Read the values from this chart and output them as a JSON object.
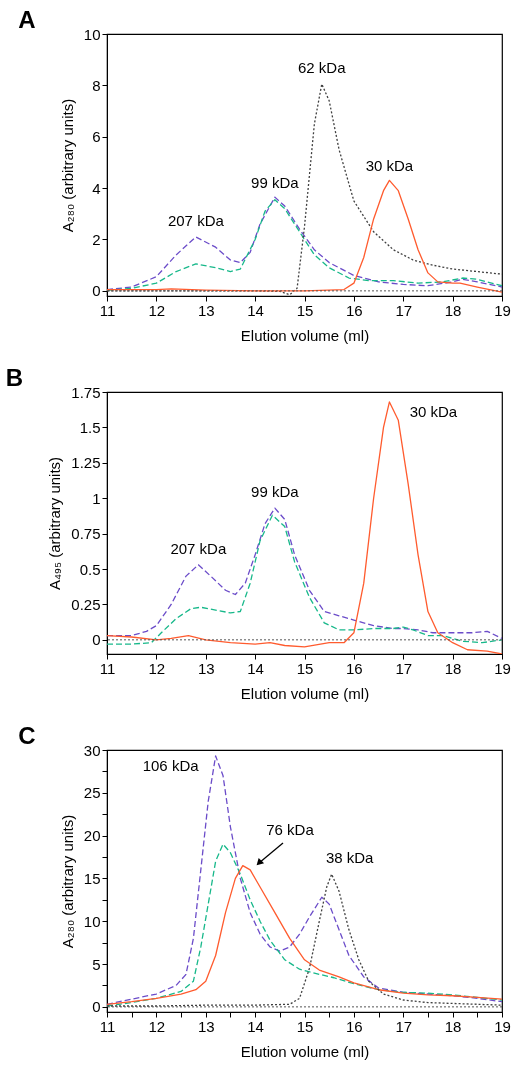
{
  "chart_data": [
    {
      "type": "line",
      "title": "A",
      "xlabel": "Elution volume (ml)",
      "ylabel": "A₂₈₀ (arbitrary units)",
      "xlim": [
        11,
        19
      ],
      "ylim": [
        -0.2,
        10
      ],
      "xticks": [
        11,
        12,
        13,
        14,
        15,
        16,
        17,
        18,
        19
      ],
      "yticks": [
        0,
        2,
        4,
        6,
        8,
        10
      ],
      "grid": false,
      "series": [
        {
          "color": "#6b4cc9",
          "line_style": "dashed",
          "x": [
            11,
            11.5,
            12,
            12.4,
            12.8,
            13.2,
            13.5,
            13.7,
            13.9,
            14.1,
            14.4,
            14.6,
            14.9,
            15.2,
            15.5,
            16,
            16.5,
            17,
            17.5,
            18,
            18.2,
            18.5,
            19
          ],
          "values": [
            0.05,
            0.15,
            0.55,
            1.4,
            2.1,
            1.7,
            1.2,
            1.1,
            1.5,
            2.6,
            3.65,
            3.3,
            2.4,
            1.6,
            1.1,
            0.6,
            0.35,
            0.25,
            0.2,
            0.35,
            0.45,
            0.35,
            0.15
          ]
        },
        {
          "color": "#17b88a",
          "line_style": "dashed",
          "x": [
            11,
            11.5,
            12,
            12.4,
            12.8,
            13.2,
            13.5,
            13.7,
            14,
            14.2,
            14.4,
            14.6,
            14.9,
            15.2,
            15.5,
            15.9,
            16.3,
            16.8,
            17.3,
            17.8,
            18.2,
            18.5,
            19
          ],
          "values": [
            0.02,
            0.1,
            0.3,
            0.75,
            1.05,
            0.9,
            0.75,
            0.85,
            2.0,
            3.1,
            3.55,
            3.2,
            2.3,
            1.4,
            0.9,
            0.5,
            0.4,
            0.4,
            0.3,
            0.35,
            0.5,
            0.45,
            0.2
          ]
        },
        {
          "color": "#404040",
          "line_style": "dotted",
          "x": [
            11,
            12,
            13,
            14,
            14.5,
            14.7,
            14.85,
            15,
            15.2,
            15.35,
            15.5,
            15.7,
            16,
            16.4,
            16.8,
            17.2,
            17.6,
            18,
            18.5,
            19
          ],
          "values": [
            0,
            0,
            0,
            0,
            -0.02,
            -0.15,
            0.1,
            2.5,
            6.5,
            8.05,
            7.4,
            5.5,
            3.5,
            2.3,
            1.6,
            1.2,
            1.0,
            0.85,
            0.75,
            0.65
          ]
        },
        {
          "color": "#ff5b2e",
          "line_style": "solid",
          "x": [
            11,
            12,
            12.3,
            13,
            14,
            15,
            15.8,
            16,
            16.2,
            16.4,
            16.6,
            16.72,
            16.9,
            17.1,
            17.3,
            17.5,
            17.7,
            18,
            18.15,
            18.5,
            19
          ],
          "values": [
            0.05,
            0.05,
            0.08,
            0.03,
            0,
            0,
            0.05,
            0.3,
            1.3,
            2.8,
            3.9,
            4.3,
            3.9,
            2.8,
            1.6,
            0.7,
            0.35,
            0.3,
            0.3,
            0.15,
            -0.05
          ]
        }
      ],
      "ref_lines": [
        {
          "axis": "y",
          "value": 0,
          "color": "#555555",
          "line_style": "dotted"
        }
      ],
      "annotations": [
        {
          "text": "207 kDa",
          "x": 12.8,
          "y": 2.1
        },
        {
          "text": "99 kDa",
          "x": 14.4,
          "y": 3.65
        },
        {
          "text": "62 kDa",
          "x": 15.35,
          "y": 8.05
        },
        {
          "text": "30 kDa",
          "x": 16.72,
          "y": 4.3
        }
      ]
    },
    {
      "type": "line",
      "title": "B",
      "xlabel": "Elution volume (ml)",
      "ylabel": "A₄₉₅ (arbitrary units)",
      "xlim": [
        11,
        19
      ],
      "ylim": [
        -0.1,
        1.75
      ],
      "xticks": [
        11,
        12,
        13,
        14,
        15,
        16,
        17,
        18,
        19
      ],
      "yticks": [
        0,
        0.25,
        0.5,
        0.75,
        1,
        1.25,
        1.5,
        1.75
      ],
      "grid": false,
      "series": [
        {
          "color": "#6b4cc9",
          "line_style": "dashed",
          "x": [
            11,
            11.5,
            11.8,
            12,
            12.3,
            12.6,
            12.85,
            13.1,
            13.4,
            13.6,
            13.8,
            14,
            14.2,
            14.4,
            14.6,
            14.8,
            15.1,
            15.4,
            15.7,
            16,
            16.4,
            16.8,
            17,
            17.3,
            17.6,
            18,
            18.4,
            18.7,
            19
          ],
          "values": [
            0.03,
            0.03,
            0.06,
            0.1,
            0.25,
            0.45,
            0.53,
            0.45,
            0.35,
            0.32,
            0.4,
            0.6,
            0.82,
            0.93,
            0.85,
            0.6,
            0.35,
            0.2,
            0.17,
            0.14,
            0.1,
            0.08,
            0.08,
            0.07,
            0.05,
            0.05,
            0.05,
            0.06,
            0.01
          ]
        },
        {
          "color": "#17b88a",
          "line_style": "dashed",
          "x": [
            11,
            11.5,
            11.9,
            12.1,
            12.4,
            12.7,
            12.9,
            13.2,
            13.5,
            13.7,
            13.9,
            14.1,
            14.35,
            14.6,
            14.8,
            15.1,
            15.4,
            15.7,
            16,
            16.4,
            16.8,
            17,
            17.2,
            17.5,
            17.8,
            18.2,
            18.6,
            19
          ],
          "values": [
            -0.03,
            -0.03,
            -0.02,
            0.05,
            0.15,
            0.22,
            0.23,
            0.21,
            0.19,
            0.2,
            0.4,
            0.7,
            0.88,
            0.8,
            0.55,
            0.3,
            0.12,
            0.07,
            0.07,
            0.08,
            0.08,
            0.09,
            0.07,
            0.03,
            0.03,
            -0.01,
            -0.02,
            0
          ]
        },
        {
          "color": "#ff5b2e",
          "line_style": "solid",
          "x": [
            11,
            11.5,
            12,
            12.3,
            12.65,
            13,
            13.5,
            14,
            14.3,
            14.6,
            15,
            15.5,
            15.8,
            16,
            16.2,
            16.4,
            16.6,
            16.72,
            16.9,
            17.1,
            17.3,
            17.5,
            17.7,
            18,
            18.3,
            18.7,
            19
          ],
          "values": [
            0.03,
            0.02,
            0,
            0.01,
            0.03,
            0,
            -0.02,
            -0.03,
            -0.02,
            -0.04,
            -0.05,
            -0.02,
            -0.02,
            0.05,
            0.4,
            1.0,
            1.5,
            1.68,
            1.55,
            1.1,
            0.6,
            0.2,
            0.05,
            -0.02,
            -0.07,
            -0.08,
            -0.1
          ]
        }
      ],
      "ref_lines": [
        {
          "axis": "y",
          "value": 0,
          "color": "#555555",
          "line_style": "dotted"
        }
      ],
      "annotations": [
        {
          "text": "207 kDa",
          "x": 12.85,
          "y": 0.53
        },
        {
          "text": "99 kDa",
          "x": 14.4,
          "y": 0.93
        },
        {
          "text": "30 kDa",
          "x": 16.72,
          "y": 1.68
        }
      ]
    },
    {
      "type": "line",
      "title": "C",
      "xlabel": "Elution volume (ml)",
      "ylabel": "A₂₈₀ (arbitrary units)",
      "xlim": [
        11,
        19
      ],
      "ylim": [
        -0.6,
        30
      ],
      "xticks": [
        11,
        {
          "value": 11.5,
          "label": null
        },
        12,
        {
          "value": 12.5,
          "label": null
        },
        13,
        {
          "value": 13.5,
          "label": null
        },
        14,
        {
          "value": 14.5,
          "label": null
        },
        15,
        {
          "value": 15.5,
          "label": null
        },
        16,
        {
          "value": 16.5,
          "label": null
        },
        17,
        {
          "value": 17.5,
          "label": null
        },
        18,
        {
          "value": 18.5,
          "label": null
        },
        19
      ],
      "yticks": [
        0,
        {
          "value": 2.5,
          "label": null
        },
        5,
        {
          "value": 7.5,
          "label": null
        },
        10,
        {
          "value": 12.5,
          "label": null
        },
        15,
        {
          "value": 17.5,
          "label": null
        },
        20,
        {
          "value": 22.5,
          "label": null
        },
        25,
        {
          "value": 27.5,
          "label": null
        },
        30
      ],
      "grid": false,
      "series": [
        {
          "color": "#6b4cc9",
          "line_style": "dashed",
          "x": [
            11,
            11.5,
            12,
            12.4,
            12.6,
            12.75,
            12.9,
            13.05,
            13.2,
            13.35,
            13.5,
            13.7,
            13.9,
            14.1,
            14.3,
            14.5,
            14.7,
            14.9,
            15.1,
            15.35,
            15.5,
            15.7,
            15.9,
            16.2,
            16.5,
            17,
            17.5,
            18,
            18.5,
            19
          ],
          "values": [
            0.3,
            0.9,
            1.5,
            2.5,
            3.8,
            8,
            16,
            24,
            29.3,
            27,
            21,
            15,
            11,
            8.5,
            7,
            6.5,
            7,
            8.5,
            10.5,
            12.8,
            12,
            9,
            6,
            3.5,
            2.2,
            1.7,
            1.5,
            1.3,
            1.0,
            0.6
          ]
        },
        {
          "color": "#17b88a",
          "line_style": "dashed",
          "x": [
            11,
            11.5,
            12,
            12.5,
            12.75,
            12.9,
            13.05,
            13.2,
            13.35,
            13.5,
            13.7,
            13.9,
            14.1,
            14.3,
            14.6,
            14.9,
            15.3,
            15.6,
            16,
            16.5,
            17,
            17.5,
            18,
            18.5,
            19
          ],
          "values": [
            0.1,
            0.5,
            1.0,
            1.8,
            3,
            7,
            12,
            17,
            19,
            18,
            15.5,
            12.5,
            10,
            7.8,
            5.5,
            4.4,
            3.8,
            3.4,
            2.7,
            2.0,
            1.7,
            1.6,
            1.4,
            1.1,
            0.8
          ]
        },
        {
          "color": "#ff5b2e",
          "line_style": "solid",
          "x": [
            11,
            11.5,
            12,
            12.5,
            12.8,
            13,
            13.2,
            13.4,
            13.6,
            13.75,
            13.9,
            14.1,
            14.4,
            14.7,
            15,
            15.3,
            15.7,
            16,
            16.5,
            17,
            17.5,
            18,
            18.5,
            19
          ],
          "values": [
            0.3,
            0.6,
            1.0,
            1.5,
            2.0,
            3.0,
            6,
            11,
            15,
            16.5,
            16,
            14,
            11,
            8,
            5.5,
            4.3,
            3.5,
            2.8,
            2.0,
            1.6,
            1.4,
            1.3,
            1.1,
            0.9
          ]
        },
        {
          "color": "#404040",
          "line_style": "dotted",
          "x": [
            11,
            12,
            13,
            14,
            14.7,
            14.9,
            15.1,
            15.3,
            15.45,
            15.55,
            15.7,
            15.9,
            16.1,
            16.3,
            16.6,
            17,
            17.5,
            18,
            18.5,
            19
          ],
          "values": [
            0.1,
            0.1,
            0.2,
            0.2,
            0.3,
            1.0,
            4.5,
            10,
            14,
            15.5,
            13.5,
            9,
            5.5,
            3,
            1.5,
            0.8,
            0.5,
            0.4,
            0.3,
            0.2
          ]
        }
      ],
      "ref_lines": [
        {
          "axis": "y",
          "value": 0,
          "color": "#555555",
          "line_style": "dotted"
        }
      ],
      "annotations": [
        {
          "text": "106 kDa",
          "x": 13.2,
          "y": 29.3
        },
        "76 kDa",
        {
          "text": "38 kDa",
          "x": 15.55,
          "y": 15.5
        }
      ]
    }
  ]
}
